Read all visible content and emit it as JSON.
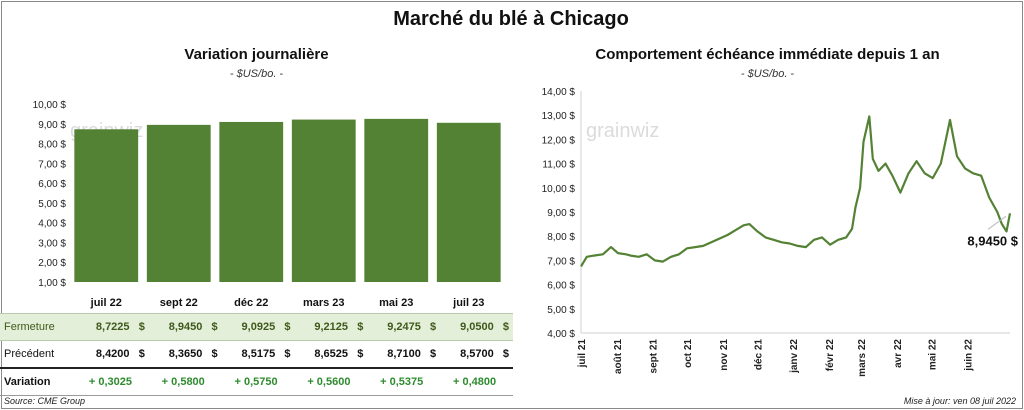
{
  "title": "Marché du blé à Chicago",
  "left_chart": {
    "title": "Variation journalière",
    "unit": "- $US/bo. -"
  },
  "right_chart": {
    "title": "Comportement échéance immédiate depuis 1 an",
    "unit": "- $US/bo. -",
    "last_label": "8,9450 $"
  },
  "watermark": "grainwiz",
  "colors": {
    "bar": "#548235",
    "line": "#548235",
    "row_highlight": "#e4efd9",
    "variation": "#2e8b2e"
  },
  "table": {
    "columns": [
      "juil 22",
      "sept 22",
      "déc 22",
      "mars 23",
      "mai 23",
      "juil 23"
    ],
    "rows": [
      {
        "label": "Fermeture",
        "values": [
          "8,7225",
          "8,9450",
          "9,0925",
          "9,2125",
          "9,2475",
          "9,0500"
        ],
        "currency": "$"
      },
      {
        "label": "Précédent",
        "values": [
          "8,4200",
          "8,3650",
          "8,5175",
          "8,6525",
          "8,7100",
          "8,5700"
        ],
        "currency": "$"
      },
      {
        "label": "Variation",
        "values": [
          "+ 0,3025",
          "+ 0,5800",
          "+ 0,5750",
          "+ 0,5600",
          "+ 0,5375",
          "+ 0,4800"
        ]
      }
    ]
  },
  "source": "Source: CME Group",
  "updated": "Mise à jour: ven 08 juil 2022",
  "chart_data": [
    {
      "type": "bar",
      "categories": [
        "juil 22",
        "sept 22",
        "déc 22",
        "mars 23",
        "mai 23",
        "juil 23"
      ],
      "values": [
        8.7225,
        8.945,
        9.0925,
        9.2125,
        9.2475,
        9.05
      ],
      "title": "Variation journalière",
      "subtitle": "- $US/bo. -",
      "ylim": [
        1,
        10
      ],
      "yticks": [
        "1,00 $",
        "2,00 $",
        "3,00 $",
        "4,00 $",
        "5,00 $",
        "6,00 $",
        "7,00 $",
        "8,00 $",
        "9,00 $",
        "10,00 $"
      ],
      "grid": false,
      "legend": "none"
    },
    {
      "type": "line",
      "title": "Comportement échéance immédiate depuis 1 an",
      "subtitle": "- $US/bo. -",
      "ylim": [
        4,
        14
      ],
      "yticks": [
        "4,00 $",
        "5,00 $",
        "6,00 $",
        "7,00 $",
        "8,00 $",
        "9,00 $",
        "10,00 $",
        "11,00 $",
        "12,00 $",
        "13,00 $",
        "14,00 $"
      ],
      "xticks": [
        "juil 21",
        "août 21",
        "sept 21",
        "oct 21",
        "nov 21",
        "déc 21",
        "janv 22",
        "févr 22",
        "mars 22",
        "avr 22",
        "mai 22",
        "juin 22"
      ],
      "grid": false,
      "legend": "none",
      "series": [
        {
          "x": [
            "2021-07-01",
            "2021-07-06",
            "2021-07-12",
            "2021-07-20",
            "2021-07-27",
            "2021-08-02",
            "2021-08-09",
            "2021-08-13",
            "2021-08-20",
            "2021-08-27",
            "2021-09-03",
            "2021-09-10",
            "2021-09-17",
            "2021-09-24",
            "2021-10-01",
            "2021-10-08",
            "2021-10-15",
            "2021-10-22",
            "2021-10-29",
            "2021-11-05",
            "2021-11-12",
            "2021-11-19",
            "2021-11-24",
            "2021-12-01",
            "2021-12-08",
            "2021-12-15",
            "2021-12-22",
            "2021-12-29",
            "2022-01-05",
            "2022-01-12",
            "2022-01-19",
            "2022-01-26",
            "2022-02-02",
            "2022-02-09",
            "2022-02-16",
            "2022-02-21",
            "2022-02-24",
            "2022-02-28",
            "2022-03-03",
            "2022-03-08",
            "2022-03-11",
            "2022-03-16",
            "2022-03-22",
            "2022-03-28",
            "2022-04-04",
            "2022-04-11",
            "2022-04-18",
            "2022-04-25",
            "2022-05-02",
            "2022-05-09",
            "2022-05-17",
            "2022-05-23",
            "2022-05-30",
            "2022-06-06",
            "2022-06-13",
            "2022-06-20",
            "2022-06-27",
            "2022-07-01",
            "2022-07-05",
            "2022-07-08"
          ],
          "values": [
            6.75,
            7.15,
            7.2,
            7.25,
            7.55,
            7.3,
            7.25,
            7.2,
            7.15,
            7.25,
            7.0,
            6.95,
            7.15,
            7.25,
            7.5,
            7.55,
            7.6,
            7.75,
            7.9,
            8.05,
            8.25,
            8.45,
            8.5,
            8.2,
            7.95,
            7.85,
            7.75,
            7.7,
            7.6,
            7.55,
            7.85,
            7.95,
            7.65,
            7.85,
            7.95,
            8.3,
            9.2,
            10.0,
            11.9,
            12.95,
            11.2,
            10.7,
            11.0,
            10.5,
            9.8,
            10.6,
            11.1,
            10.6,
            10.4,
            11.0,
            12.8,
            11.3,
            10.8,
            10.6,
            10.5,
            9.6,
            9.0,
            8.5,
            8.2,
            8.945
          ],
          "last_value_label": "8,9450 $"
        }
      ]
    }
  ]
}
